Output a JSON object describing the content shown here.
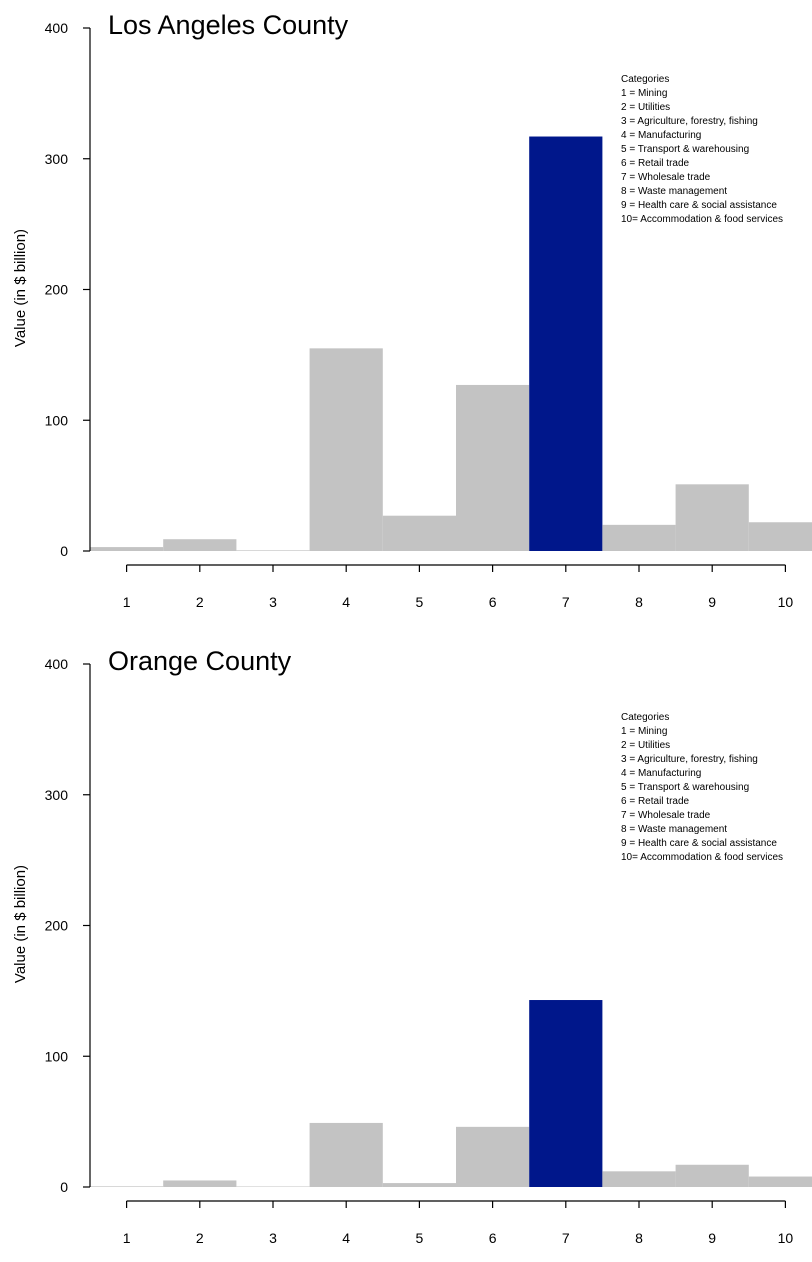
{
  "colors": {
    "bar": "#c3c3c3",
    "highlight": "#00178b",
    "axis": "#000000"
  },
  "chart_data": [
    {
      "type": "bar",
      "title": "Los Angeles County",
      "ylabel": "Value (in $ billion)",
      "xlabel": "",
      "categories": [
        "1",
        "2",
        "3",
        "4",
        "5",
        "6",
        "7",
        "8",
        "9",
        "10"
      ],
      "values": [
        3,
        9,
        0.5,
        155,
        27,
        127,
        317,
        20,
        51,
        22
      ],
      "ylim": [
        0,
        400
      ],
      "yticks": [
        "0",
        "100",
        "200",
        "300",
        "400"
      ],
      "highlight_index": 6,
      "legend": {
        "position": "top-right",
        "title": "Categories",
        "entries": [
          "1 = Mining",
          "2 = Utilities",
          "3 = Agriculture, forestry, fishing",
          "4 = Manufacturing",
          "5 = Transport & warehousing",
          "6 = Retail trade",
          "7 = Wholesale trade",
          "8 = Waste management",
          "9 = Health care & social assistance",
          "10= Accommodation & food services"
        ]
      }
    },
    {
      "type": "bar",
      "title": "Orange County",
      "ylabel": "Value (in $ billion)",
      "xlabel": "",
      "categories": [
        "1",
        "2",
        "3",
        "4",
        "5",
        "6",
        "7",
        "8",
        "9",
        "10"
      ],
      "values": [
        0.5,
        5,
        0.3,
        49,
        3,
        46,
        143,
        12,
        17,
        8
      ],
      "ylim": [
        0,
        400
      ],
      "yticks": [
        "0",
        "100",
        "200",
        "300",
        "400"
      ],
      "highlight_index": 6,
      "legend": {
        "position": "top-right",
        "title": "Categories",
        "entries": [
          "1 = Mining",
          "2 = Utilities",
          "3 = Agriculture, forestry, fishing",
          "4 = Manufacturing",
          "5 = Transport & warehousing",
          "6 = Retail trade",
          "7 = Wholesale trade",
          "8 = Waste management",
          "9 = Health care & social assistance",
          "10= Accommodation & food services"
        ]
      }
    }
  ]
}
